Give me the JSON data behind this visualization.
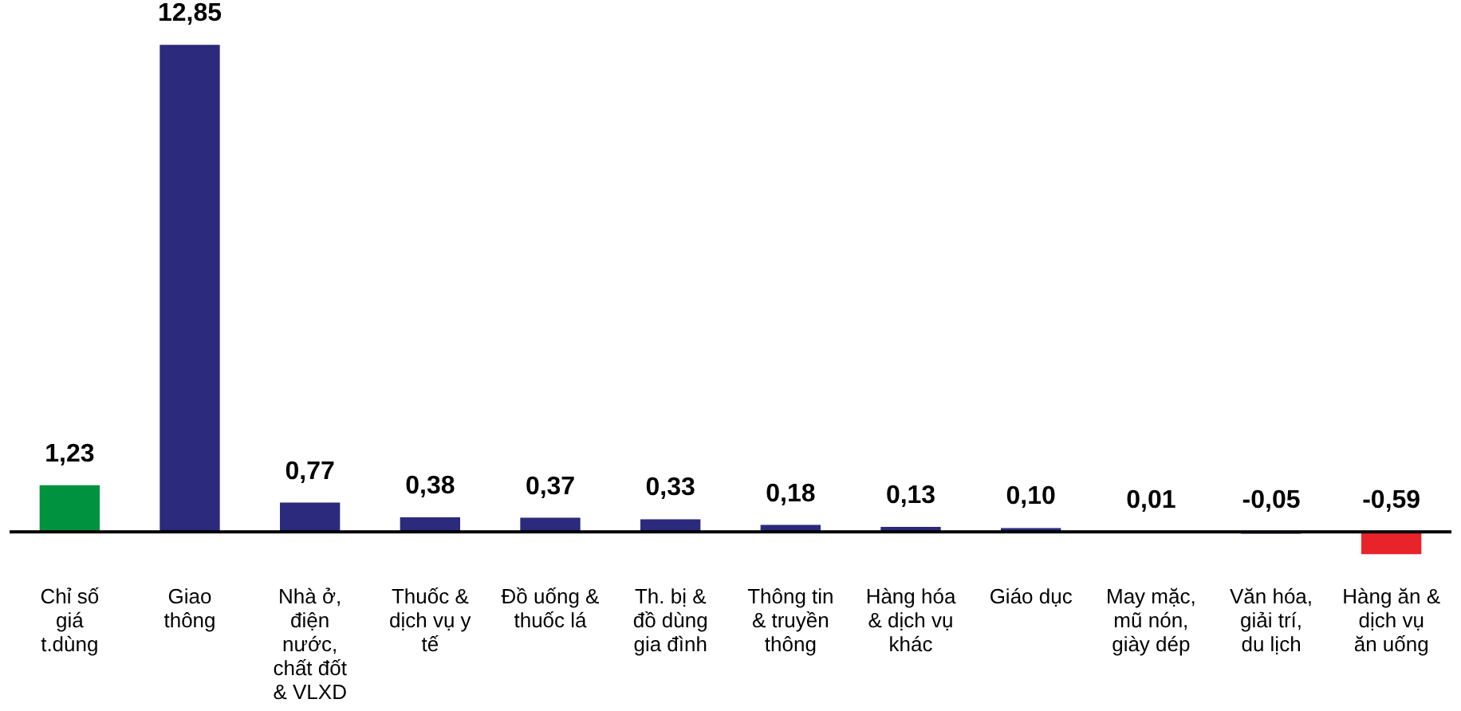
{
  "chart_data": {
    "type": "bar",
    "categories": [
      "Chỉ số giá t.dùng",
      "Giao thông",
      "Nhà ở, điện nước, chất đốt & VLXD",
      "Thuốc & dịch vụ y tế",
      "Đồ uống & thuốc lá",
      "Th. bị & đồ dùng gia đình",
      "Thông tin & truyền thông",
      "Hàng hóa & dịch vụ khác",
      "Giáo dục",
      "May mặc, mũ nón, giày dép",
      "Văn hóa, giải trí, du lịch",
      "Hàng ăn & dịch vụ ăn uống"
    ],
    "values": [
      1.23,
      12.85,
      0.77,
      0.38,
      0.37,
      0.33,
      0.18,
      0.13,
      0.1,
      0.01,
      -0.05,
      -0.59
    ],
    "colors": [
      "#00923f",
      "#2b2a7c",
      "#2b2a7c",
      "#2b2a7c",
      "#2b2a7c",
      "#2b2a7c",
      "#2b2a7c",
      "#2b2a7c",
      "#2b2a7c",
      "#2b2a7c",
      "#2b2a7c",
      "#e8242a"
    ],
    "value_labels": [
      "1,23",
      "12,85",
      "0,77",
      "0,38",
      "0,37",
      "0,33",
      "0,18",
      "0,13",
      "0,10",
      "0,01",
      "-0,05",
      "-0,59"
    ]
  }
}
